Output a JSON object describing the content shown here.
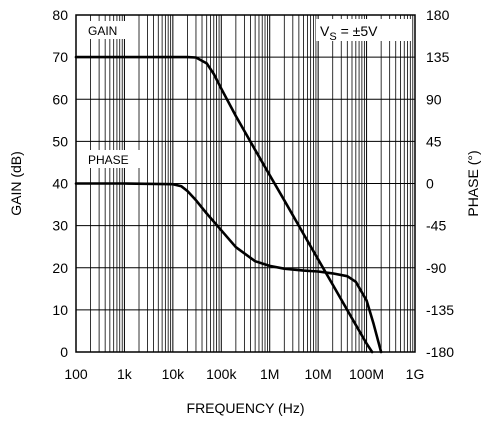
{
  "chart_data": {
    "type": "line",
    "xlabel": "FREQUENCY (Hz)",
    "ylabel_left": "GAIN (dB)",
    "ylabel_right": "PHASE (°)",
    "x_scale": "log",
    "xlim": [
      100,
      1000000000
    ],
    "ylim_left": [
      0,
      80
    ],
    "ylim_right": [
      -180,
      180
    ],
    "grid": true,
    "x_ticks": [
      {
        "value": 100,
        "label": "100"
      },
      {
        "value": 1000,
        "label": "1k"
      },
      {
        "value": 10000,
        "label": "10k"
      },
      {
        "value": 100000,
        "label": "100k"
      },
      {
        "value": 1000000,
        "label": "1M"
      },
      {
        "value": 10000000,
        "label": "10M"
      },
      {
        "value": 100000000,
        "label": "100M"
      },
      {
        "value": 1000000000,
        "label": "1G"
      }
    ],
    "y_ticks_left": [
      0,
      10,
      20,
      30,
      40,
      50,
      60,
      70,
      80
    ],
    "y_ticks_right": [
      -180,
      -135,
      -90,
      -45,
      0,
      45,
      90,
      135,
      180
    ],
    "annotations": {
      "gain": "GAIN",
      "phase": "PHASE",
      "vs_prefix": "V",
      "vs_sub": "S",
      "vs_suffix": " = ±5V"
    },
    "series": [
      {
        "axis": "left",
        "points": [
          [
            100,
            70
          ],
          [
            1000,
            70
          ],
          [
            10000,
            70
          ],
          [
            20000,
            70
          ],
          [
            30000,
            69.9
          ],
          [
            50000,
            68.5
          ],
          [
            70000,
            66
          ],
          [
            100000,
            62.5
          ],
          [
            200000,
            56
          ],
          [
            500000,
            48
          ],
          [
            1000000,
            42
          ],
          [
            2000000,
            36
          ],
          [
            5000000,
            28
          ],
          [
            10000000,
            22
          ],
          [
            20000000,
            16
          ],
          [
            50000000,
            8
          ],
          [
            100000000,
            2
          ],
          [
            130000000,
            0
          ]
        ]
      },
      {
        "axis": "right",
        "points": [
          [
            100,
            0
          ],
          [
            1000,
            0
          ],
          [
            10000,
            -0.7
          ],
          [
            15000,
            -3
          ],
          [
            20000,
            -8
          ],
          [
            30000,
            -18
          ],
          [
            50000,
            -32
          ],
          [
            100000,
            -50
          ],
          [
            200000,
            -68
          ],
          [
            500000,
            -83
          ],
          [
            1000000,
            -88
          ],
          [
            2000000,
            -91
          ],
          [
            5000000,
            -93
          ],
          [
            10000000,
            -94
          ],
          [
            20000000,
            -96
          ],
          [
            40000000,
            -99
          ],
          [
            60000000,
            -105
          ],
          [
            100000000,
            -125
          ],
          [
            140000000,
            -150
          ],
          [
            200000000,
            -180
          ]
        ]
      }
    ]
  }
}
